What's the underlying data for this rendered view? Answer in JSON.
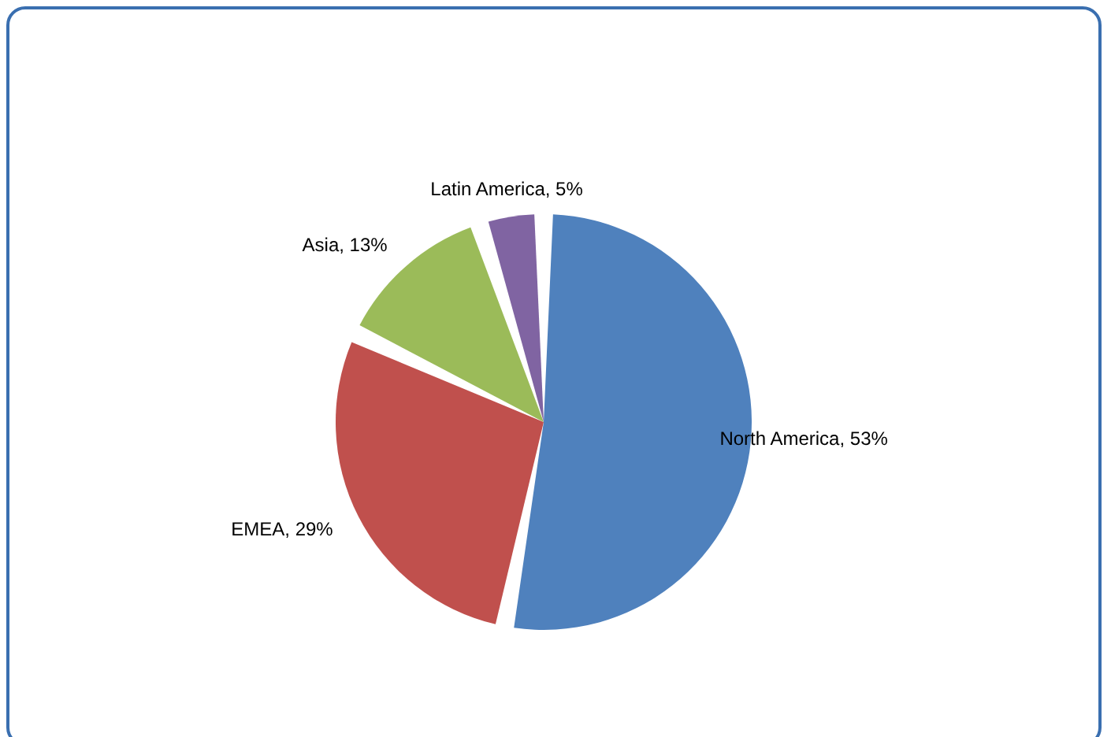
{
  "chart_data": {
    "type": "pie",
    "categories": [
      "North America",
      "EMEA",
      "Asia",
      "Latin America"
    ],
    "values": [
      53,
      29,
      13,
      5
    ],
    "value_labels": [
      "53%",
      "29%",
      "13%",
      "5%"
    ],
    "colors": [
      "#4f81bd",
      "#c0504d",
      "#9bbb59",
      "#8064a2"
    ]
  }
}
